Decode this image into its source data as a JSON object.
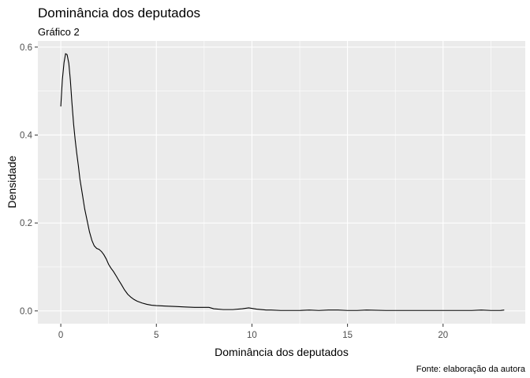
{
  "chart_data": {
    "type": "line",
    "title": "Dominância dos deputados",
    "subtitle": "Gráfico 2",
    "xlabel": "Dominância dos deputados",
    "ylabel": "Densidade",
    "caption": "Fonte: elaboração da autora",
    "xlim": [
      -1.2,
      24.3
    ],
    "ylim": [
      -0.029,
      0.614
    ],
    "x_ticks": [
      0,
      5,
      10,
      15,
      20
    ],
    "x_tick_labels": [
      "0",
      "5",
      "10",
      "15",
      "20"
    ],
    "y_ticks": [
      0.0,
      0.2,
      0.4,
      0.6
    ],
    "y_tick_labels": [
      "0.0",
      "0.2",
      "0.4",
      "0.6"
    ],
    "grid": true,
    "legend": "none",
    "colors": {
      "panel": "#EBEBEB",
      "grid": "#FFFFFF",
      "line": "#000000",
      "axis_text": "#4D4D4D"
    },
    "series": [
      {
        "x": [
          0,
          0.08,
          0.17,
          0.25,
          0.33,
          0.42,
          0.5,
          0.58,
          0.67,
          0.75,
          0.83,
          0.92,
          1.0,
          1.13,
          1.25,
          1.38,
          1.5,
          1.63,
          1.75,
          1.88,
          2.0,
          2.13,
          2.25,
          2.38,
          2.5,
          2.63,
          2.75,
          2.92,
          3.0,
          3.17,
          3.33,
          3.5,
          3.67,
          3.83,
          4.0,
          4.25,
          4.5,
          4.75,
          5.0,
          5.5,
          6.0,
          6.5,
          7.0,
          7.5,
          7.75,
          8.0,
          8.5,
          9.0,
          9.5,
          9.83,
          10.25,
          10.75,
          11.0,
          11.5,
          12.0,
          12.5,
          13.0,
          13.5,
          14.0,
          14.5,
          15.0,
          15.5,
          16.0,
          17.0,
          18.0,
          19.0,
          20.0,
          21.0,
          21.5,
          22.0,
          22.5,
          23.0,
          23.2
        ],
        "y": [
          0.465,
          0.525,
          0.565,
          0.585,
          0.583,
          0.563,
          0.525,
          0.475,
          0.425,
          0.39,
          0.36,
          0.33,
          0.3,
          0.265,
          0.232,
          0.205,
          0.18,
          0.16,
          0.148,
          0.142,
          0.14,
          0.135,
          0.128,
          0.118,
          0.106,
          0.097,
          0.09,
          0.078,
          0.072,
          0.06,
          0.048,
          0.038,
          0.031,
          0.026,
          0.022,
          0.018,
          0.015,
          0.013,
          0.012,
          0.011,
          0.01,
          0.009,
          0.008,
          0.008,
          0.008,
          0.005,
          0.003,
          0.003,
          0.005,
          0.007,
          0.004,
          0.002,
          0.002,
          0.001,
          0.001,
          0.001,
          0.002,
          0.001,
          0.002,
          0.002,
          0.001,
          0.001,
          0.002,
          0.001,
          0.001,
          0.001,
          0.001,
          0.001,
          0.001,
          0.002,
          0.001,
          0.001,
          0.002
        ]
      }
    ]
  }
}
